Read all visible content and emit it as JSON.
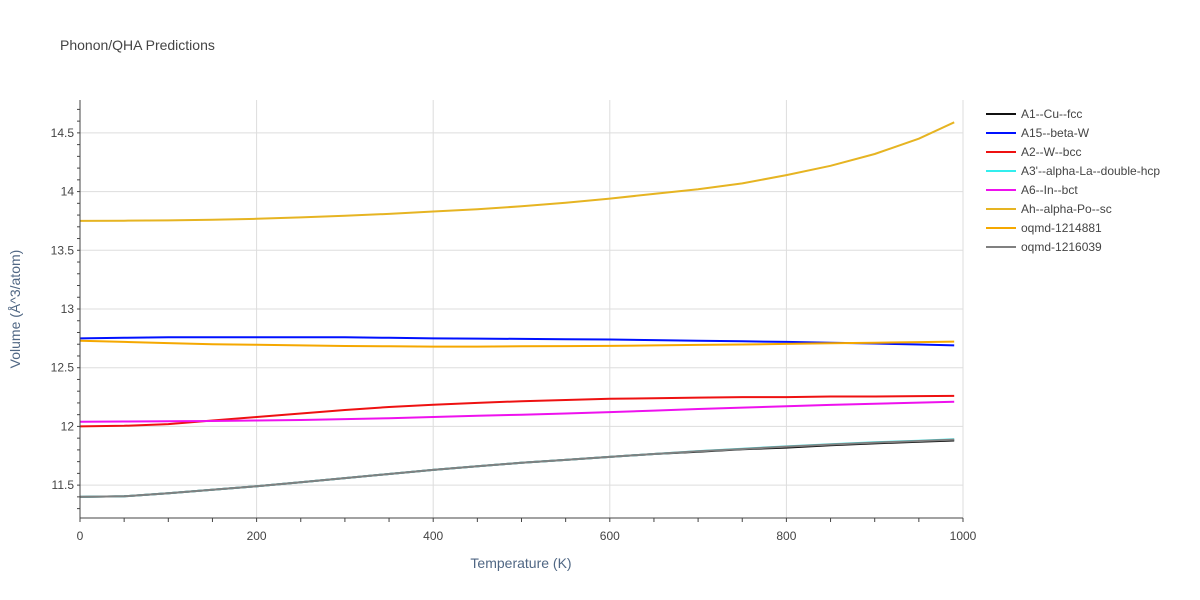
{
  "chart_data": {
    "type": "line",
    "title": "Phonon/QHA Predictions",
    "xlabel": "Temperature (K)",
    "ylabel": "Volume (Å^3/atom)",
    "xlim": [
      0,
      1000
    ],
    "ylim": [
      11.22,
      14.78
    ],
    "grid": true,
    "legend_position": "right",
    "x_ticks": [
      0,
      200,
      400,
      600,
      800,
      1000
    ],
    "x_tick_labels": [
      "0",
      "200",
      "400",
      "600",
      "800",
      "1000"
    ],
    "y_ticks": [
      11.5,
      12,
      12.5,
      13,
      13.5,
      14,
      14.5
    ],
    "y_tick_labels": [
      "11.5",
      "12",
      "12.5",
      "13",
      "13.5",
      "14",
      "14.5"
    ],
    "series": [
      {
        "name": "A1--Cu--fcc",
        "color": "#111111",
        "x": [
          0,
          50,
          100,
          150,
          200,
          250,
          300,
          350,
          400,
          450,
          500,
          550,
          600,
          650,
          700,
          750,
          800,
          850,
          900,
          950,
          990
        ],
        "y": [
          11.4,
          11.405,
          11.43,
          11.46,
          11.49,
          11.525,
          11.56,
          11.595,
          11.63,
          11.66,
          11.69,
          11.715,
          11.74,
          11.765,
          11.785,
          11.805,
          11.82,
          11.84,
          11.855,
          11.87,
          11.88
        ]
      },
      {
        "name": "A15--beta-W",
        "color": "#0011ff",
        "x": [
          0,
          50,
          100,
          150,
          200,
          250,
          300,
          350,
          400,
          450,
          500,
          550,
          600,
          650,
          700,
          750,
          800,
          850,
          900,
          950,
          990
        ],
        "y": [
          12.75,
          12.755,
          12.76,
          12.76,
          12.76,
          12.76,
          12.76,
          12.755,
          12.75,
          12.748,
          12.745,
          12.742,
          12.74,
          12.735,
          12.73,
          12.725,
          12.72,
          12.713,
          12.706,
          12.698,
          12.69
        ]
      },
      {
        "name": "A2--W--bcc",
        "color": "#ee1111",
        "x": [
          0,
          50,
          100,
          150,
          200,
          250,
          300,
          350,
          400,
          450,
          500,
          550,
          600,
          650,
          700,
          750,
          800,
          850,
          900,
          950,
          990
        ],
        "y": [
          12.0,
          12.005,
          12.02,
          12.05,
          12.08,
          12.11,
          12.14,
          12.165,
          12.185,
          12.2,
          12.215,
          12.225,
          12.235,
          12.24,
          12.245,
          12.25,
          12.25,
          12.255,
          12.255,
          12.258,
          12.26
        ]
      },
      {
        "name": "A3'--alpha-La--double-hcp",
        "color": "#33eeee",
        "x": [
          0,
          50,
          100,
          150,
          200,
          250,
          300,
          350,
          400,
          450,
          500,
          550,
          600,
          650,
          700,
          750,
          800,
          850,
          900,
          950,
          990
        ],
        "y": [
          11.4,
          11.405,
          11.43,
          11.46,
          11.49,
          11.525,
          11.56,
          11.595,
          11.63,
          11.66,
          11.69,
          11.715,
          11.74,
          11.765,
          11.79,
          11.81,
          11.83,
          11.848,
          11.865,
          11.878,
          11.89
        ]
      },
      {
        "name": "A6--In--bct",
        "color": "#ee11ee",
        "x": [
          0,
          50,
          100,
          150,
          200,
          250,
          300,
          350,
          400,
          450,
          500,
          550,
          600,
          650,
          700,
          750,
          800,
          850,
          900,
          950,
          990
        ],
        "y": [
          12.04,
          12.042,
          12.044,
          12.046,
          12.05,
          12.055,
          12.062,
          12.07,
          12.08,
          12.09,
          12.1,
          12.11,
          12.122,
          12.135,
          12.148,
          12.16,
          12.172,
          12.183,
          12.193,
          12.203,
          12.21
        ]
      },
      {
        "name": "Ah--alpha-Po--sc",
        "color": "#e6b422",
        "x": [
          0,
          50,
          100,
          150,
          200,
          250,
          300,
          350,
          400,
          450,
          500,
          550,
          600,
          650,
          700,
          750,
          800,
          850,
          900,
          950,
          990
        ],
        "y": [
          13.75,
          13.752,
          13.755,
          13.76,
          13.768,
          13.78,
          13.795,
          13.81,
          13.83,
          13.85,
          13.875,
          13.905,
          13.94,
          13.98,
          14.02,
          14.07,
          14.14,
          14.22,
          14.32,
          14.45,
          14.59
        ]
      },
      {
        "name": "oqmd-1214881",
        "color": "#f5a800",
        "x": [
          0,
          50,
          100,
          150,
          200,
          250,
          300,
          350,
          400,
          450,
          500,
          550,
          600,
          650,
          700,
          750,
          800,
          850,
          900,
          950,
          990
        ],
        "y": [
          12.73,
          12.72,
          12.71,
          12.7,
          12.695,
          12.69,
          12.685,
          12.682,
          12.68,
          12.68,
          12.682,
          12.684,
          12.686,
          12.69,
          12.694,
          12.698,
          12.703,
          12.708,
          12.713,
          12.718,
          12.722
        ]
      },
      {
        "name": "oqmd-1216039",
        "color": "#808080",
        "x": [
          0,
          50,
          100,
          150,
          200,
          250,
          300,
          350,
          400,
          450,
          500,
          550,
          600,
          650,
          700,
          750,
          800,
          850,
          900,
          950,
          990
        ],
        "y": [
          11.4,
          11.405,
          11.43,
          11.46,
          11.49,
          11.525,
          11.56,
          11.595,
          11.63,
          11.66,
          11.69,
          11.715,
          11.74,
          11.765,
          11.788,
          11.808,
          11.828,
          11.846,
          11.862,
          11.876,
          11.888
        ]
      }
    ]
  }
}
